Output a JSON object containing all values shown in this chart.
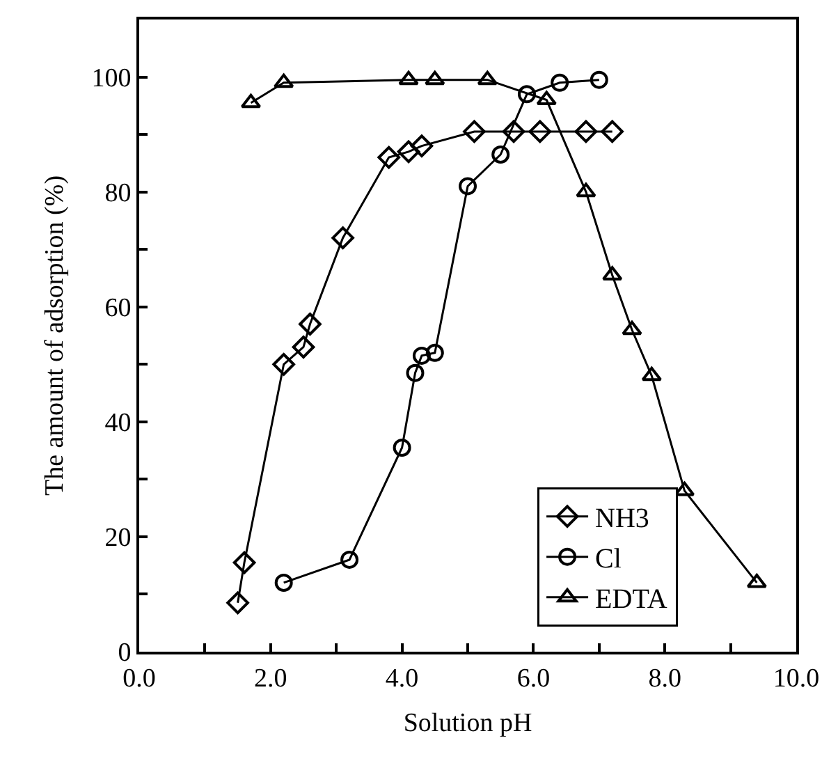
{
  "chart_data": {
    "type": "line",
    "xlabel": "Solution pH",
    "ylabel": "The amount of adsorption (%)",
    "xlim": [
      0,
      10
    ],
    "ylim": [
      0,
      110
    ],
    "xticks": [
      {
        "value": 0,
        "label": "0.0"
      },
      {
        "value": 1,
        "label": null
      },
      {
        "value": 2,
        "label": "2.0"
      },
      {
        "value": 3,
        "label": null
      },
      {
        "value": 4,
        "label": "4.0"
      },
      {
        "value": 5,
        "label": null
      },
      {
        "value": 6,
        "label": "6.0"
      },
      {
        "value": 7,
        "label": null
      },
      {
        "value": 8,
        "label": "8.0"
      },
      {
        "value": 9,
        "label": null
      },
      {
        "value": 10,
        "label": "10.0"
      }
    ],
    "yticks": [
      0,
      {
        "value": 10,
        "label": null
      },
      20,
      {
        "value": 30,
        "label": null
      },
      40,
      {
        "value": 50,
        "label": null
      },
      60,
      {
        "value": 70,
        "label": null
      },
      80,
      {
        "value": 90,
        "label": null
      },
      100
    ],
    "legend": "bottom right",
    "line_style": "solid",
    "series": [
      {
        "name": "NH3",
        "color": "#000000",
        "marker": "diamond",
        "x": [
          1.5,
          1.6,
          2.2,
          2.5,
          2.6,
          3.1,
          3.8,
          4.1,
          4.3,
          5.1,
          5.7,
          6.1,
          6.8,
          7.2
        ],
        "values": [
          8.5,
          15.5,
          50,
          53,
          57,
          72,
          86,
          87,
          88,
          90.5,
          90.5,
          90.5,
          90.5,
          90.5
        ]
      },
      {
        "name": "Cl",
        "color": "#000000",
        "marker": "circle",
        "x": [
          2.2,
          3.2,
          4.0,
          4.2,
          4.3,
          4.5,
          5.0,
          5.5,
          5.9,
          6.4,
          7.0
        ],
        "values": [
          12,
          16,
          35.5,
          48.5,
          51.5,
          52,
          81,
          86.5,
          97,
          99,
          99.5
        ]
      },
      {
        "name": "EDTA",
        "color": "#000000",
        "marker": "triangle",
        "x": [
          1.7,
          2.2,
          4.1,
          4.5,
          5.3,
          6.2,
          6.8,
          7.2,
          7.5,
          7.8,
          8.3,
          9.4
        ],
        "values": [
          95.5,
          99,
          99.5,
          99.5,
          99.5,
          96,
          80,
          65.5,
          56,
          48,
          28,
          12
        ]
      }
    ]
  }
}
